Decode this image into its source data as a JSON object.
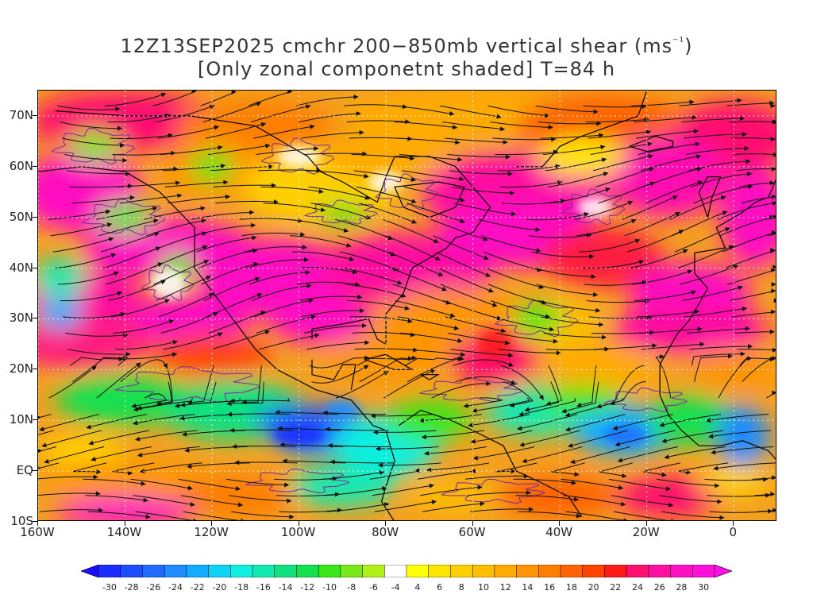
{
  "title": {
    "line1_prefix": "12Z13SEP2025 cmchr 200−850mb vertical shear (ms",
    "line1_sup": "⁻¹",
    "line1_suffix": ")",
    "line2": "[Only zonal componetnt shaded] T=84 h"
  },
  "map": {
    "lon_range": [
      -160,
      10
    ],
    "lat_range": [
      -10,
      75
    ],
    "lat_labels": [
      "70N",
      "60N",
      "50N",
      "40N",
      "30N",
      "20N",
      "10N",
      "EQ",
      "10S"
    ],
    "lat_values": [
      70,
      60,
      50,
      40,
      30,
      20,
      10,
      0,
      -10
    ],
    "lon_labels": [
      "160W",
      "140W",
      "120W",
      "100W",
      "80W",
      "60W",
      "40W",
      "20W",
      "0"
    ],
    "lon_values": [
      -160,
      -140,
      -120,
      -100,
      -80,
      -60,
      -40,
      -20,
      0
    ],
    "shaded_field": "zonal component of 200-850mb vertical shear",
    "overlay": "streamlines of shear vector",
    "contour_color": "#7a2a9a",
    "coastline_color": "#000000"
  },
  "colorbar": {
    "labels": [
      "-30",
      "-28",
      "-26",
      "-24",
      "-22",
      "-20",
      "-18",
      "-16",
      "-14",
      "-12",
      "-10",
      "-8",
      "-6",
      "-4",
      "4",
      "6",
      "8",
      "10",
      "12",
      "14",
      "16",
      "18",
      "20",
      "22",
      "24",
      "26",
      "28",
      "30"
    ],
    "colors": [
      "#1a2cff",
      "#1e4cff",
      "#1f6cff",
      "#1f8cff",
      "#12acff",
      "#0fd3f5",
      "#10f0e0",
      "#12e8b0",
      "#10e080",
      "#14e050",
      "#3ae818",
      "#78e818",
      "#b0f018",
      "#ffffff",
      "#ffff00",
      "#ffe400",
      "#ffd000",
      "#ffbe00",
      "#ffaa00",
      "#ff9400",
      "#ff7e00",
      "#ff6200",
      "#ff4400",
      "#ff1a1a",
      "#ff1070",
      "#ff10a0",
      "#ff10c0",
      "#ff10d8"
    ],
    "low_arrow_color": "#1a10ff",
    "high_arrow_color": "#ff10e8"
  }
}
